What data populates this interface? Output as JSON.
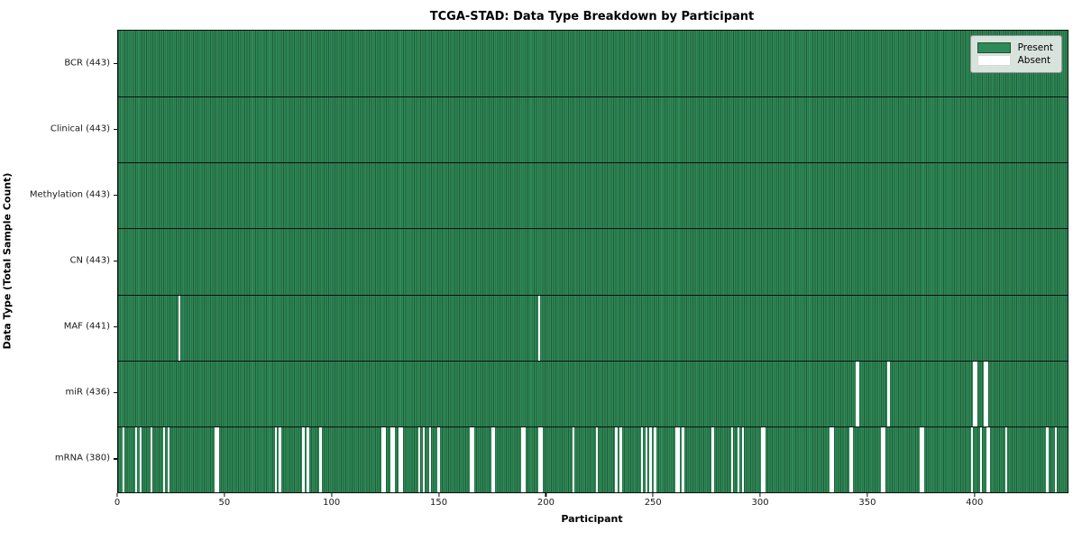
{
  "title": "TCGA-STAD: Data Type Breakdown by Participant",
  "x_axis_label": "Participant",
  "y_axis_label": "Data Type (Total Sample Count)",
  "legend": {
    "present_label": "Present",
    "absent_label": "Absent"
  },
  "colors": {
    "present": "#2e8b57",
    "present_edge": "#215c3b",
    "absent": "#ffffff",
    "axis": "#0d0d0d",
    "legend_bg": "#e8ebe8"
  },
  "chart_data": {
    "type": "heatmap",
    "title": "TCGA-STAD: Data Type Breakdown by Participant",
    "xlabel": "Participant",
    "ylabel": "Data Type (Total Sample Count)",
    "legend_entries": [
      "Present",
      "Absent"
    ],
    "legend_position": "upper right",
    "n_participants": 443,
    "xlim": [
      0,
      443
    ],
    "x_ticks": [
      0,
      50,
      100,
      150,
      200,
      250,
      300,
      350,
      400
    ],
    "rows": [
      {
        "label": "BCR (443)",
        "data_type": "BCR",
        "present_count": 443,
        "absent_participants": []
      },
      {
        "label": "Clinical (443)",
        "data_type": "Clinical",
        "present_count": 443,
        "absent_participants": []
      },
      {
        "label": "Methylation (443)",
        "data_type": "Methylation",
        "present_count": 443,
        "absent_participants": []
      },
      {
        "label": "CN (443)",
        "data_type": "CN",
        "present_count": 443,
        "absent_participants": []
      },
      {
        "label": "MAF (441)",
        "data_type": "MAF",
        "present_count": 441,
        "absent_participants": [
          28,
          196
        ]
      },
      {
        "label": "miR (436)",
        "data_type": "miR",
        "present_count": 436,
        "absent_participants": [
          344,
          345,
          359,
          399,
          400,
          404,
          405
        ]
      },
      {
        "label": "mRNA (380)",
        "data_type": "mRNA",
        "present_count": 380,
        "absent_participants": [
          2,
          8,
          10,
          15,
          21,
          23,
          45,
          46,
          73,
          75,
          86,
          88,
          94,
          123,
          124,
          127,
          128,
          131,
          132,
          140,
          142,
          145,
          149,
          164,
          165,
          174,
          175,
          188,
          189,
          196,
          197,
          212,
          223,
          232,
          234,
          244,
          246,
          248,
          250,
          260,
          261,
          263,
          277,
          286,
          289,
          291,
          300,
          301,
          332,
          333,
          341,
          342,
          356,
          357,
          374,
          375,
          398,
          402,
          405,
          406,
          414,
          433,
          437
        ]
      }
    ]
  }
}
